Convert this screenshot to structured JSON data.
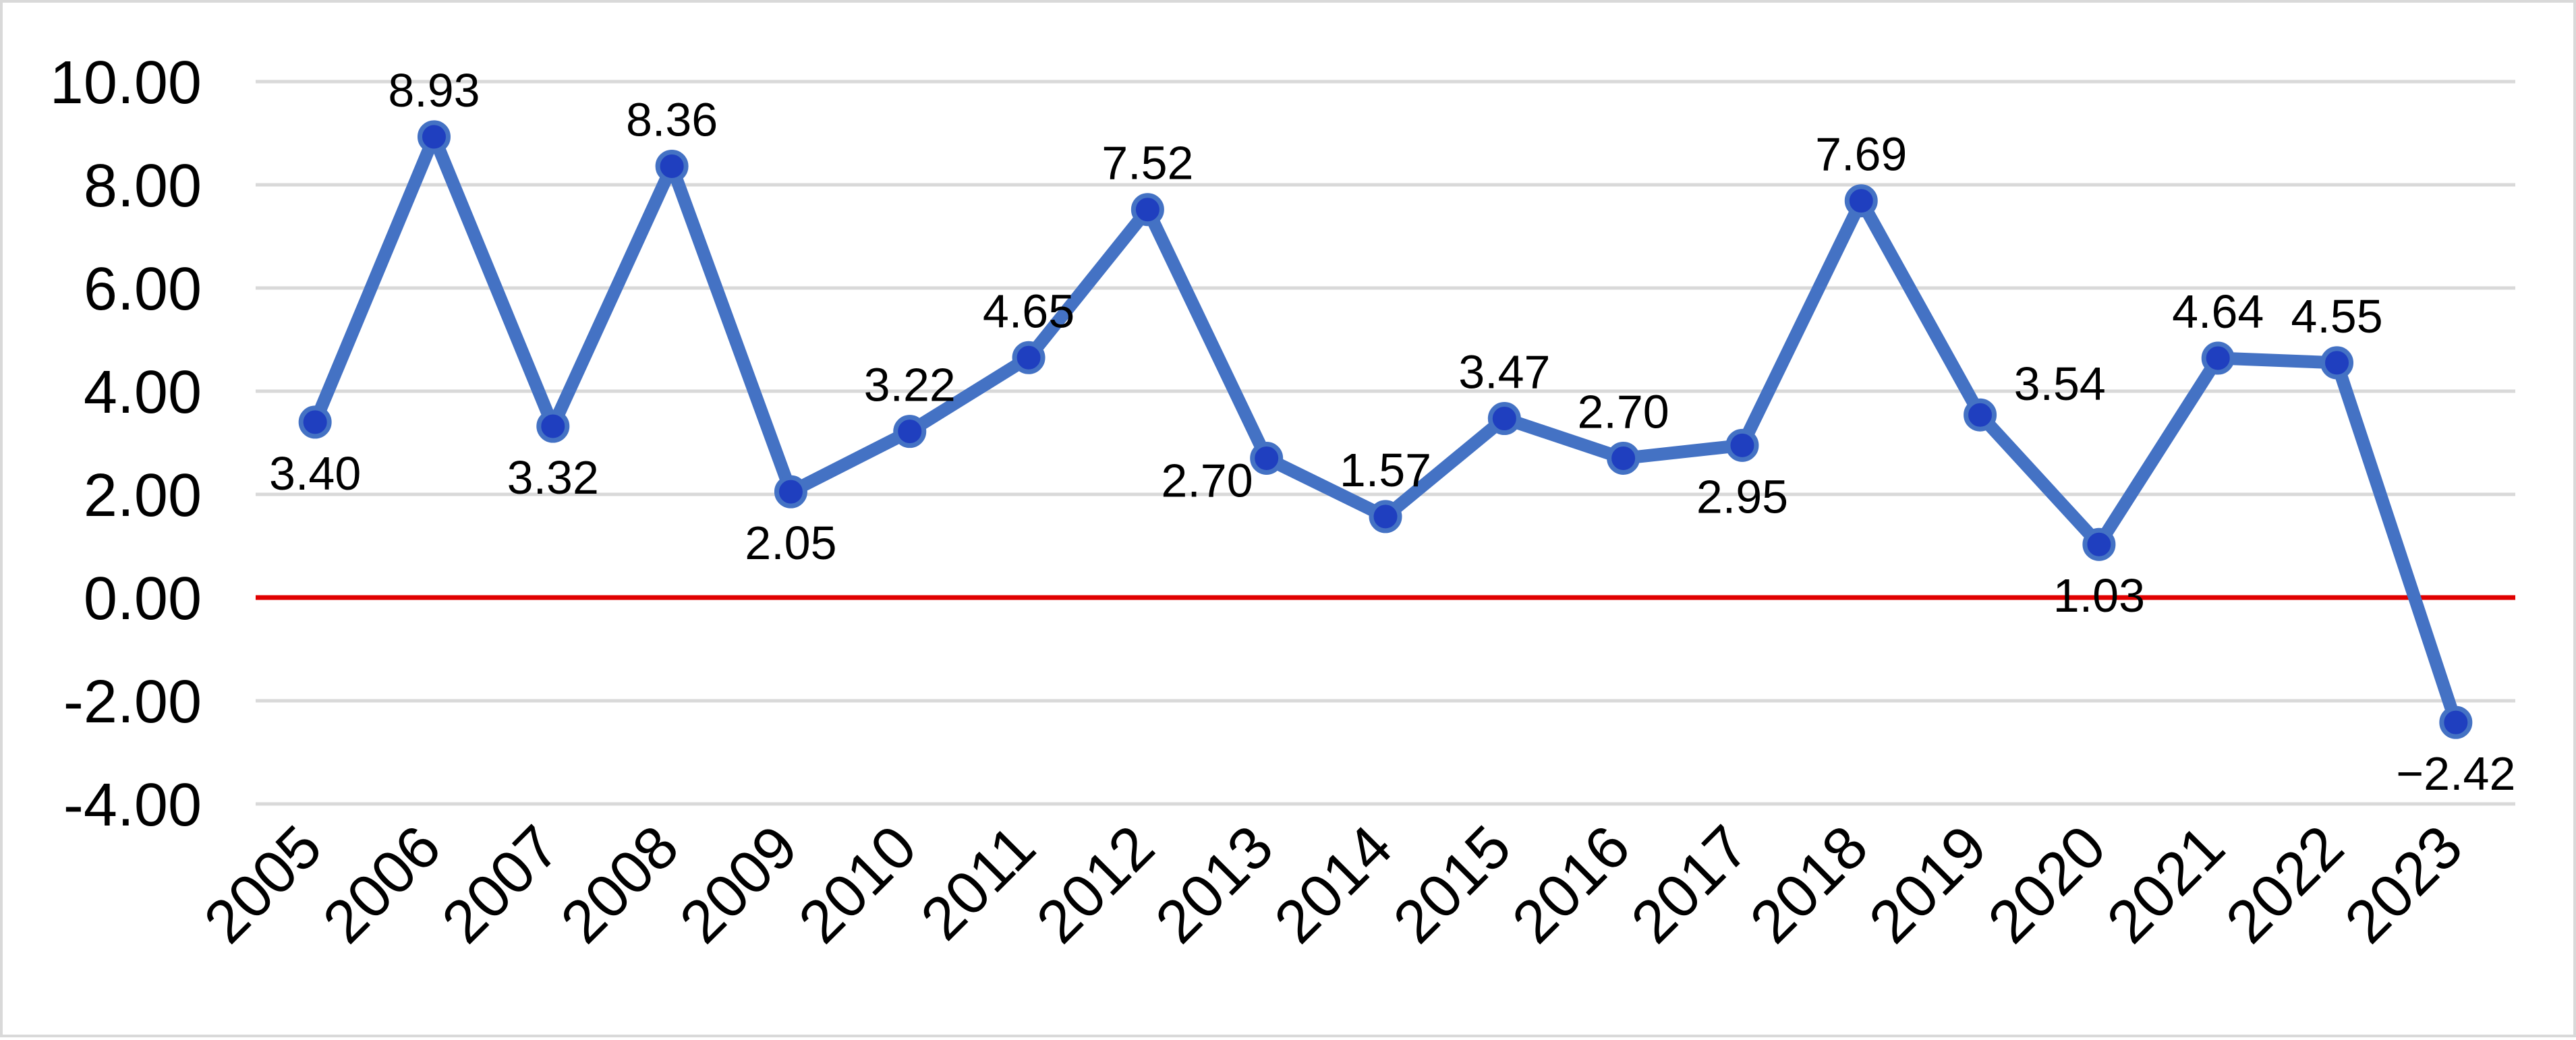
{
  "chart_data": {
    "type": "line",
    "title": "",
    "xlabel": "",
    "ylabel": "",
    "categories": [
      "2005",
      "2006",
      "2007",
      "2008",
      "2009",
      "2010",
      "2011",
      "2012",
      "2013",
      "2014",
      "2015",
      "2016",
      "2017",
      "2018",
      "2019",
      "2020",
      "2021",
      "2022",
      "2023"
    ],
    "values": [
      3.4,
      8.93,
      3.32,
      8.36,
      2.05,
      3.22,
      4.65,
      7.52,
      2.7,
      1.57,
      3.47,
      2.7,
      2.95,
      7.69,
      3.54,
      1.03,
      4.64,
      4.55,
      -2.42
    ],
    "data_labels": [
      "3.40",
      "8.93",
      "3.32",
      "8.36",
      "2.05",
      "3.22",
      "4.65",
      "7.52",
      "2.70",
      "1.57",
      "3.47",
      "2.70",
      "2.95",
      "7.69",
      "3.54",
      "1.03",
      "4.64",
      "4.55",
      "−2.42"
    ],
    "label_positions": [
      "below",
      "above",
      "below",
      "above",
      "below",
      "above",
      "above",
      "above",
      "left",
      "above",
      "above",
      "above",
      "below",
      "above",
      "right",
      "below",
      "above",
      "above",
      "below"
    ],
    "ylim": [
      -4,
      10
    ],
    "yticks": [
      10,
      8,
      6,
      4,
      2,
      0,
      -2,
      -4
    ],
    "ytick_labels": [
      "10.00",
      "8.00",
      "6.00",
      "4.00",
      "2.00",
      "0.00",
      "-2.00",
      "-4.00"
    ],
    "grid": true,
    "legend": "none",
    "colors": {
      "line": "#4472c4",
      "marker": "#1f3fbf",
      "zero_line": "#e00000",
      "grid": "#d9d9d9",
      "border": "#d9d9d9"
    }
  }
}
